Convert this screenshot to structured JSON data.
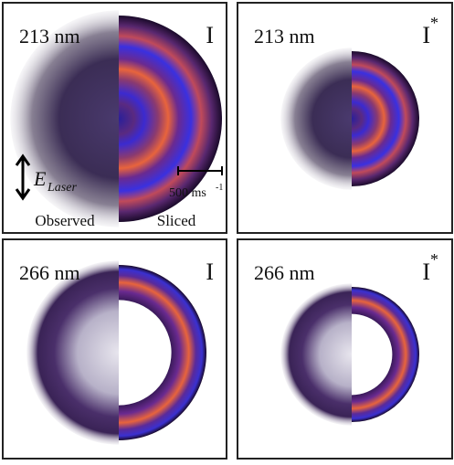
{
  "panels": [
    {
      "wavelength": "213 nm",
      "species": "I"
    },
    {
      "wavelength": "213 nm",
      "species": "I",
      "species_sup": "*"
    },
    {
      "wavelength": "266 nm",
      "species": "I"
    },
    {
      "wavelength": "266 nm",
      "species": "I",
      "species_sup": "*"
    }
  ],
  "annotations": {
    "field": "E",
    "field_sub": "Laser",
    "scale_bar": "500 ms",
    "scale_bar_sup": "-1",
    "left_label": "Observed",
    "right_label": "Sliced"
  }
}
